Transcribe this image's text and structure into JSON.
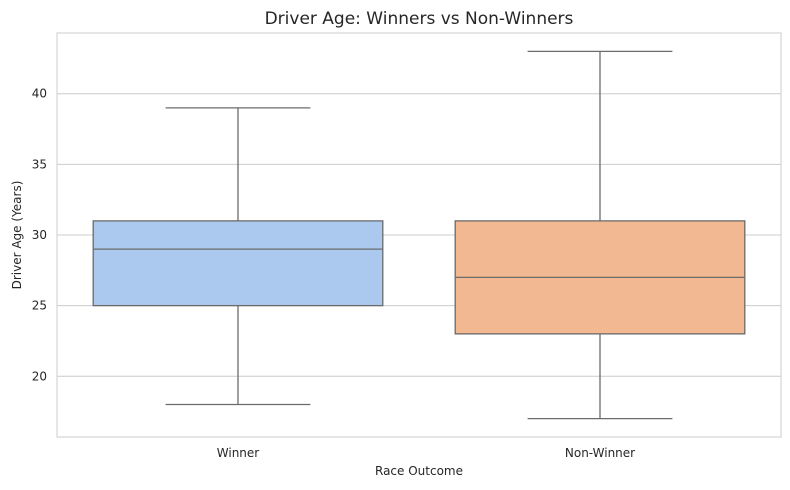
{
  "chart_data": {
    "type": "box",
    "title": "Driver Age: Winners vs Non-Winners",
    "xlabel": "Race Outcome",
    "ylabel": "Driver Age (Years)",
    "ylim": [
      15.7,
      44.3
    ],
    "yticks": [
      20,
      25,
      30,
      35,
      40
    ],
    "grid": true,
    "categories": [
      "Winner",
      "Non-Winner"
    ],
    "boxes": [
      {
        "category": "Winner",
        "min": 18,
        "q1": 25,
        "median": 29,
        "q3": 31,
        "max": 39,
        "color": "#abc9ee"
      },
      {
        "category": "Non-Winner",
        "min": 17,
        "q1": 23,
        "median": 27,
        "q3": 31,
        "max": 43,
        "color": "#f1b891"
      }
    ]
  }
}
